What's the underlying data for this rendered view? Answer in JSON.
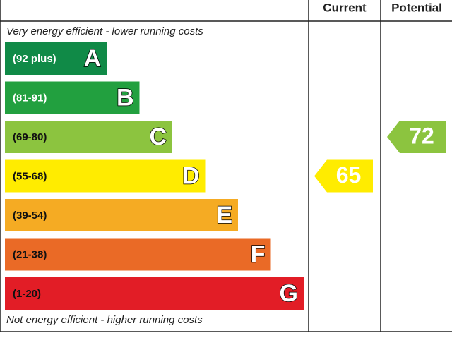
{
  "chart_data": {
    "type": "epc",
    "columns": [
      "Current",
      "Potential"
    ],
    "top_caption": "Very energy efficient - lower running costs",
    "bottom_caption": "Not energy efficient - higher running costs",
    "bands": [
      {
        "range": "(92 plus)",
        "letter": "A",
        "color": "#108a47"
      },
      {
        "range": "(81-91)",
        "letter": "B",
        "color": "#22a03f"
      },
      {
        "range": "(69-80)",
        "letter": "C",
        "color": "#8cc43f"
      },
      {
        "range": "(55-68)",
        "letter": "D",
        "color": "#ffec00"
      },
      {
        "range": "(39-54)",
        "letter": "E",
        "color": "#f5ab23"
      },
      {
        "range": "(21-38)",
        "letter": "F",
        "color": "#ea6a26"
      },
      {
        "range": "(1-20)",
        "letter": "G",
        "color": "#e21d26"
      }
    ],
    "current": 65,
    "potential": 72
  }
}
